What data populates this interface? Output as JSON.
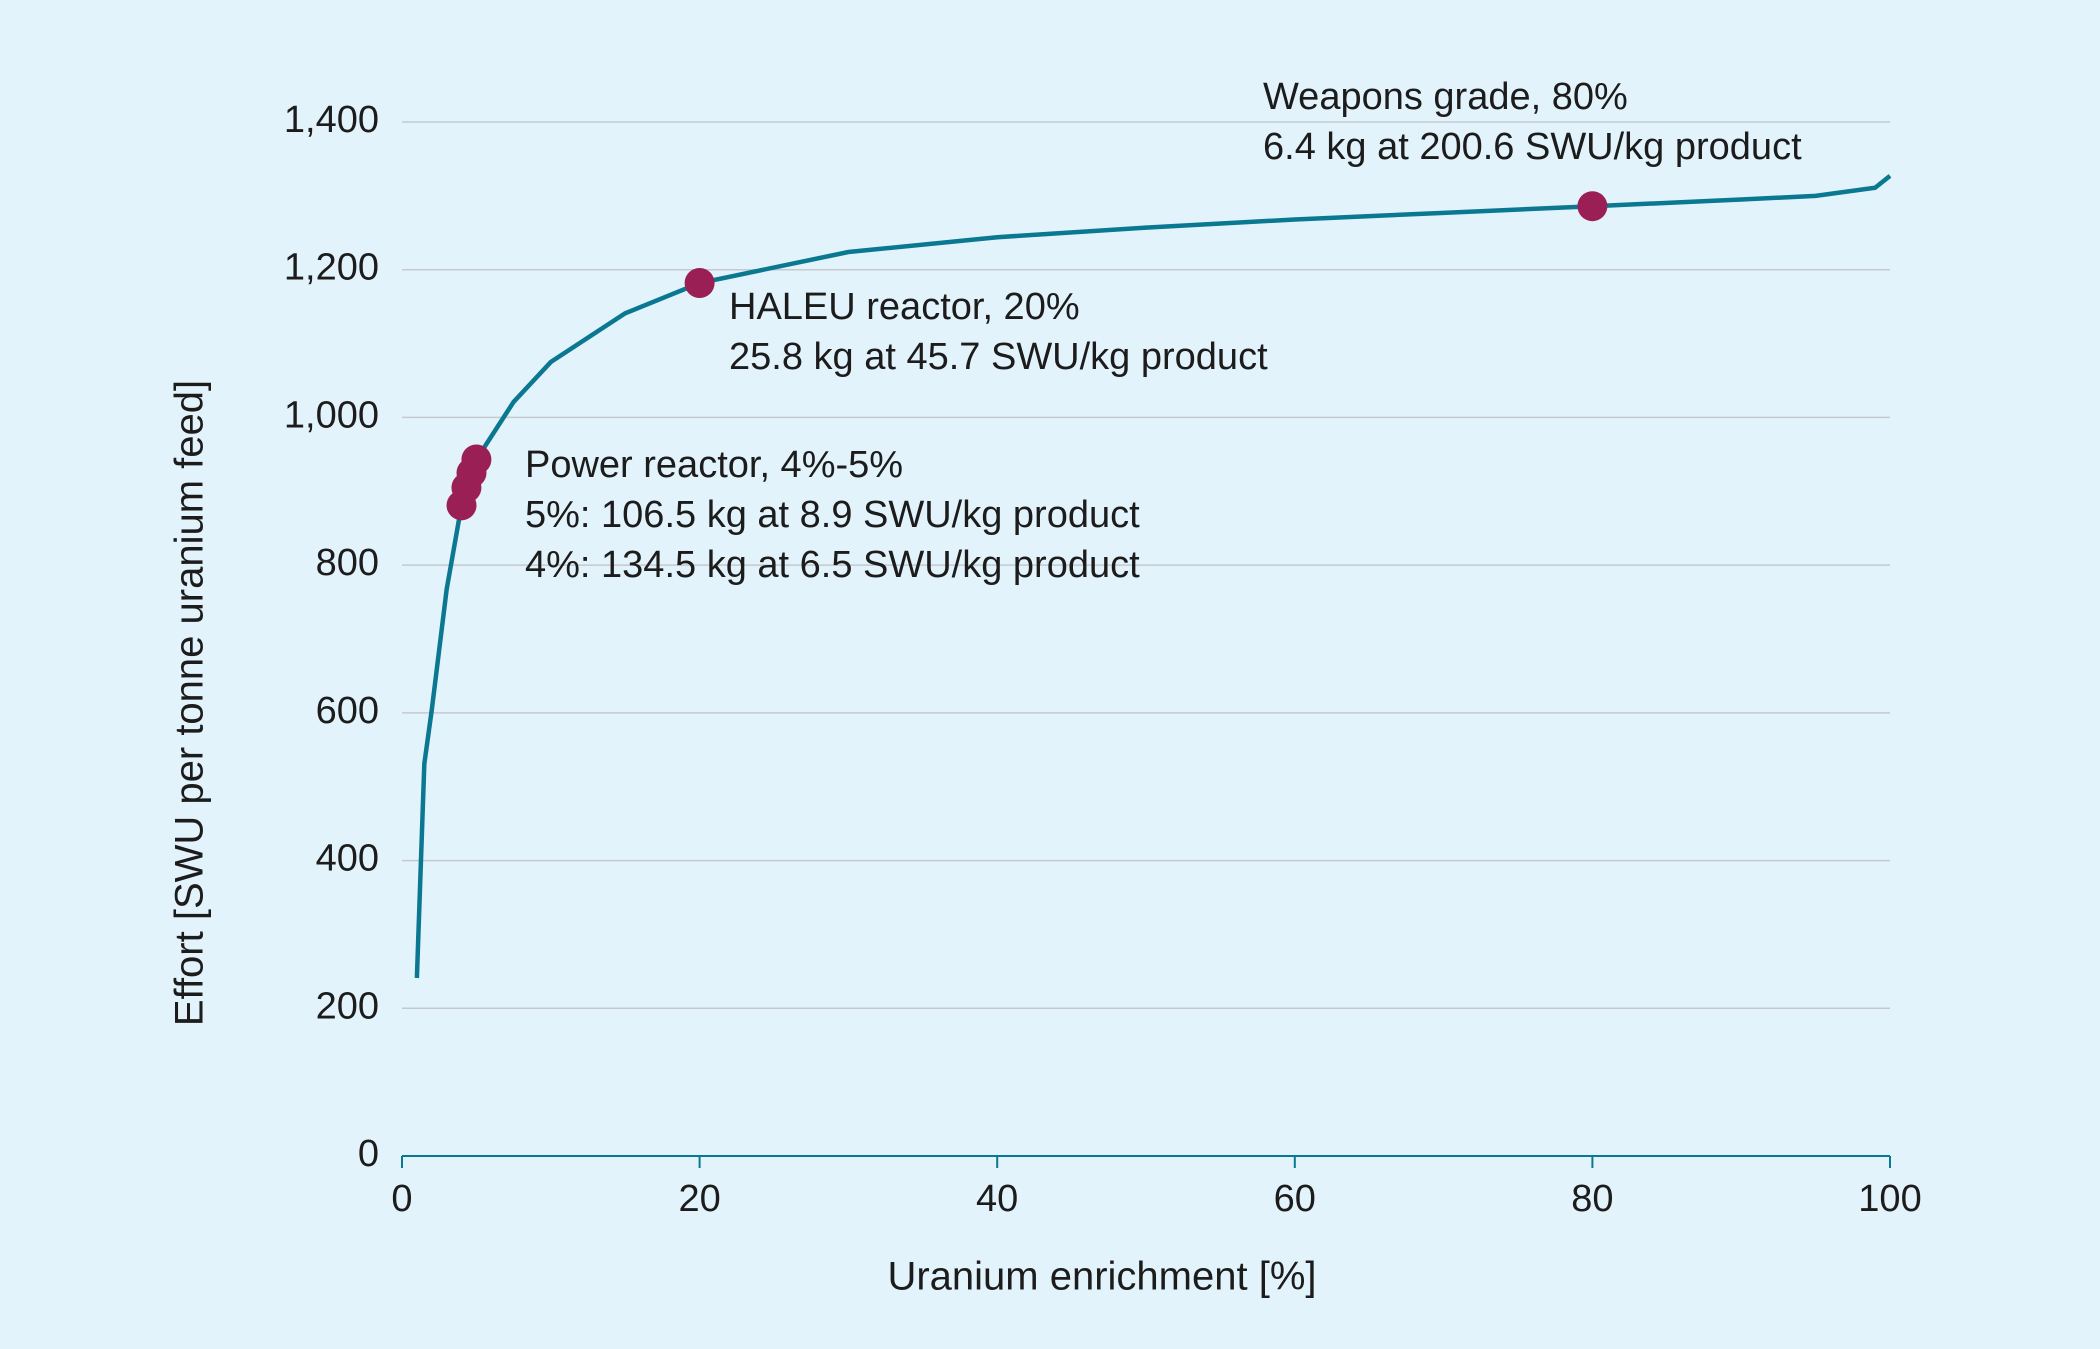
{
  "chart_data": {
    "type": "line",
    "xlabel": "Uranium enrichment [%]",
    "ylabel": "Effort [SWU per tonne uranium feed]",
    "xlim": [
      0,
      100
    ],
    "xticks": [
      0,
      20,
      40,
      60,
      80,
      100
    ],
    "ylim": [
      0,
      1400
    ],
    "yticks": [
      0,
      200,
      400,
      600,
      800,
      {
        "value": 1000,
        "label": "1,000"
      },
      {
        "value": 1200,
        "label": "1,200"
      },
      {
        "value": 1400,
        "label": "1,400"
      }
    ],
    "grid": true,
    "series": [
      {
        "color": "#0b7891",
        "x": [
          1,
          1.5,
          2,
          3,
          4,
          5,
          7.5,
          10,
          15,
          20,
          30,
          40,
          50,
          60,
          70,
          80,
          90,
          95,
          99,
          100
        ],
        "values": [
          241,
          531,
          604,
          767,
          881,
          943,
          1021,
          1075,
          1141,
          1182,
          1224,
          1244,
          1257,
          1268,
          1277,
          1286,
          1295,
          1300,
          1311,
          1327
        ]
      }
    ],
    "points": {
      "color": "#9a1f55",
      "x": [
        4,
        4.33,
        4.67,
        5,
        20,
        80
      ],
      "values": [
        881,
        905,
        925,
        943,
        1182,
        1286
      ]
    },
    "annotations": [
      {
        "lines": [
          "Weapons grade, 80%",
          "6.4 kg at 200.6 SWU/kg product"
        ]
      },
      {
        "lines": [
          "HALEU reactor, 20%",
          "25.8 kg at 45.7 SWU/kg product"
        ]
      },
      {
        "lines": [
          "Power reactor, 4%-5%",
          "5%: 106.5 kg at 8.9 SWU/kg product",
          "4%: 134.5 kg at 6.5 SWU/kg product"
        ]
      }
    ]
  }
}
